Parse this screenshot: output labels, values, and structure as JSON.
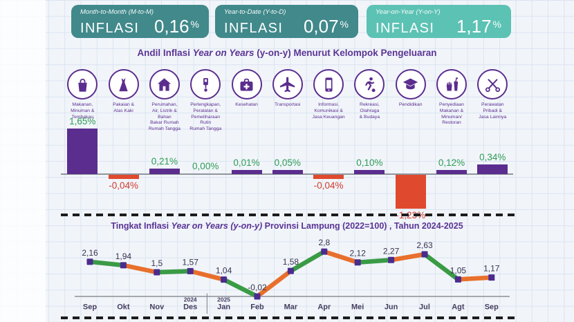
{
  "stats": {
    "cards": [
      {
        "period": "Month-to-Month (M-to-M)",
        "label": "INFLASI",
        "value": "0,16",
        "percent": "%",
        "bg": "#41898b"
      },
      {
        "period": "Year-to-Date (Y-to-D)",
        "label": "INFLASI",
        "value": "0,07",
        "percent": "%",
        "bg": "#41898b"
      },
      {
        "period": "Year-on-Year (Y-on-Y)",
        "label": "INFLASI",
        "value": "1,17",
        "percent": "%",
        "bg": "#5cc2b4"
      }
    ]
  },
  "bar_section_title": {
    "pre": "Andil Inflasi ",
    "italic": "Year on Years",
    "post": " (y-on-y) Menurut Kelompok Pengeluaran"
  },
  "line_section_title": {
    "pre": "Tingkat Inflasi ",
    "italic": "Year on Years (y-on-y)",
    "post": " Provinsi Lampung (2022=100) , Tahun 2024-2025"
  },
  "chart_data": [
    {
      "type": "bar",
      "title": "Andil Inflasi Year on Years (y-on-y) Menurut Kelompok Pengeluaran",
      "categories": [
        "Makanan, Minuman & Tembakau",
        "Pakaian & Alas Kaki",
        "Perumahan, Air, Listrik & Bahan Bakar Rumah Tangga",
        "Perlengkapan, Peralatan & Pemeliharaan Rutin Rumah Tangga",
        "Kesehatan",
        "Transportasi",
        "Informasi, Komunikasi & Jasa Keuangan",
        "Rekreasi, Olahraga & Budaya",
        "Pendidikan",
        "Penyediaan Makanan & Minuman/Restoran",
        "Perawatan Pribadi & Jasa Lainnya"
      ],
      "category_lines": [
        "Makanan,\nMinuman &\nTembakau",
        "Pakaian &\nAlas Kaki",
        "Perumahan,\nAir, Listrik &\nBahan\nBakar Rumah\nRumah Tangga",
        "Perlengkapan,\nPeralatan &\nPemeliharaan\nRutin\nRumah Tangga",
        "Kesehatan",
        "Transportasi",
        "Informasi,\nKomunikasi &\nJasa Keuangan",
        "Rekreasi,\nOlahraga\n& Budaya",
        "Pendidikan",
        "Penyediaan\nMakanan &\nMinuman/\nRestoran",
        "Perawatan\nPribadi &\nJasa Lainnya"
      ],
      "icons": [
        "groceries-icon",
        "clothing-icon",
        "house-icon",
        "household-equipment-icon",
        "health-icon",
        "transport-icon",
        "phone-icon",
        "sports-icon",
        "education-icon",
        "restaurant-icon",
        "personal-care-icon"
      ],
      "values": [
        1.65,
        -0.04,
        0.21,
        0.0,
        0.01,
        0.05,
        -0.04,
        0.1,
        -1.23,
        0.12,
        0.34
      ],
      "value_labels": [
        "1,65%",
        "-0,04%",
        "0,21%",
        "0,00%",
        "0,01%",
        "0,05%",
        "-0,04%",
        "0,10%",
        "-1,23%",
        "0,12%",
        "0,34%"
      ],
      "colors": {
        "positive_bar": "#5b2d8e",
        "negative_bar": "#df4a2e",
        "positive_label": "#2e9c53",
        "negative_label": "#d23a2c"
      },
      "ylabel": "",
      "xlabel": ""
    },
    {
      "type": "line",
      "title": "Tingkat Inflasi Year on Years (y-on-y) Provinsi Lampung (2022=100) , Tahun 2024-2025",
      "x": [
        "Sep",
        "Okt",
        "Nov",
        "Des",
        "Jan",
        "Feb",
        "Mar",
        "Apr",
        "Mei",
        "Jun",
        "Jul",
        "Agt",
        "Sep"
      ],
      "year_markers": [
        {
          "index": 3,
          "year": "2024"
        },
        {
          "index": 4,
          "year": "2025"
        }
      ],
      "values": [
        2.16,
        1.94,
        1.5,
        1.57,
        1.04,
        -0.02,
        1.58,
        2.8,
        2.12,
        2.27,
        2.63,
        1.05,
        1.17
      ],
      "point_labels": [
        "2,16",
        "1,94",
        "1,5",
        "1,57",
        "1,04",
        "-0,02",
        "1,58",
        "2,8",
        "2,12",
        "2,27",
        "2,63",
        "1,05",
        "1,17"
      ],
      "segment_colors": [
        "#3a9b45",
        "#e8702c"
      ],
      "marker_color": "#4a2c8e",
      "label_color": "#37324e",
      "month_color": "#453d5f",
      "ylim": [
        -0.2,
        3
      ],
      "grid": false,
      "legend": "none"
    }
  ]
}
